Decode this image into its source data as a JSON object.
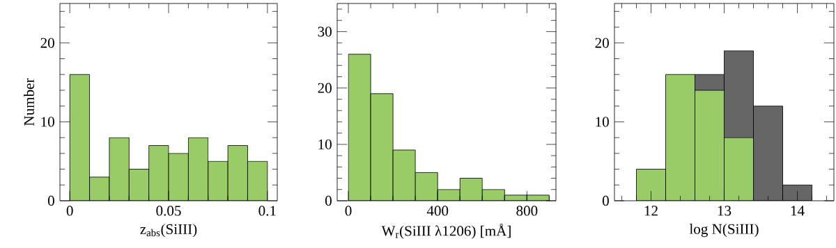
{
  "chart_data": [
    {
      "type": "histogram",
      "xlabel": "z$_{abs}$(SiIII)",
      "ylabel": "Number",
      "bins": [
        0,
        0.01,
        0.02,
        0.03,
        0.04,
        0.05,
        0.06,
        0.07,
        0.08,
        0.09,
        0.1
      ],
      "values": [
        16,
        3,
        8,
        4,
        7,
        6,
        8,
        5,
        7,
        5
      ],
      "color": "#99cc66",
      "xlim": [
        -0.005,
        0.105
      ],
      "ylim": [
        0,
        25
      ],
      "xticks": [
        0,
        {
          "value": 0.01,
          "label": null
        },
        {
          "value": 0.02,
          "label": null
        },
        {
          "value": 0.03,
          "label": null
        },
        {
          "value": 0.04,
          "label": null
        },
        0.05,
        {
          "value": 0.06,
          "label": null
        },
        {
          "value": 0.07,
          "label": null
        },
        {
          "value": 0.08,
          "label": null
        },
        {
          "value": 0.09,
          "label": null
        },
        0.1
      ],
      "yticks": [
        0,
        {
          "value": 2,
          "label": null
        },
        {
          "value": 4,
          "label": null
        },
        {
          "value": 6,
          "label": null
        },
        {
          "value": 8,
          "label": null
        },
        10,
        {
          "value": 12,
          "label": null
        },
        {
          "value": 14,
          "label": null
        },
        {
          "value": 16,
          "label": null
        },
        {
          "value": 18,
          "label": null
        },
        20,
        {
          "value": 22,
          "label": null
        },
        {
          "value": 24,
          "label": null
        }
      ]
    },
    {
      "type": "histogram",
      "xlabel": "W$_{r}$(SiIII λ1206)  [mÅ]",
      "bins": [
        0,
        100,
        200,
        300,
        400,
        500,
        600,
        700,
        800,
        900
      ],
      "values": [
        26,
        19,
        9,
        5,
        2,
        4,
        2,
        1,
        1
      ],
      "color": "#99cc66",
      "xlim": [
        -50,
        930
      ],
      "ylim": [
        0,
        35
      ],
      "xticks": [
        0,
        {
          "value": 100,
          "label": null
        },
        {
          "value": 200,
          "label": null
        },
        {
          "value": 300,
          "label": null
        },
        400,
        {
          "value": 500,
          "label": null
        },
        {
          "value": 600,
          "label": null
        },
        {
          "value": 700,
          "label": null
        },
        800,
        {
          "value": 900,
          "label": null
        }
      ],
      "yticks": [
        0,
        {
          "value": 2,
          "label": null
        },
        {
          "value": 4,
          "label": null
        },
        {
          "value": 6,
          "label": null
        },
        {
          "value": 8,
          "label": null
        },
        10,
        {
          "value": 12,
          "label": null
        },
        {
          "value": 14,
          "label": null
        },
        {
          "value": 16,
          "label": null
        },
        {
          "value": 18,
          "label": null
        },
        20,
        {
          "value": 22,
          "label": null
        },
        {
          "value": 24,
          "label": null
        },
        {
          "value": 26,
          "label": null
        },
        {
          "value": 28,
          "label": null
        },
        30,
        {
          "value": 32,
          "label": null
        },
        {
          "value": 34,
          "label": null
        }
      ]
    },
    {
      "type": "histogram",
      "xlabel": "log  N(SiIII)",
      "bins": [
        11.8,
        12.2,
        12.6,
        13.0,
        13.4,
        13.8,
        14.2
      ],
      "xlim": [
        11.5,
        14.5
      ],
      "ylim": [
        0,
        25
      ],
      "series": [
        {
          "color": "#666666",
          "values": [
            null,
            null,
            16,
            19,
            12,
            2
          ]
        },
        {
          "color": "#99cc66",
          "values": [
            4,
            16,
            14,
            8,
            null,
            null
          ]
        }
      ],
      "xticks": [
        {
          "value": 11.6,
          "label": null
        },
        {
          "value": 11.8,
          "label": null
        },
        12,
        {
          "value": 12.2,
          "label": null
        },
        {
          "value": 12.4,
          "label": null
        },
        {
          "value": 12.6,
          "label": null
        },
        {
          "value": 12.8,
          "label": null
        },
        13,
        {
          "value": 13.2,
          "label": null
        },
        {
          "value": 13.4,
          "label": null
        },
        {
          "value": 13.6,
          "label": null
        },
        {
          "value": 13.8,
          "label": null
        },
        14,
        {
          "value": 14.2,
          "label": null
        },
        {
          "value": 14.4,
          "label": null
        }
      ],
      "yticks": [
        0,
        {
          "value": 2,
          "label": null
        },
        {
          "value": 4,
          "label": null
        },
        {
          "value": 6,
          "label": null
        },
        {
          "value": 8,
          "label": null
        },
        10,
        {
          "value": 12,
          "label": null
        },
        {
          "value": 14,
          "label": null
        },
        {
          "value": 16,
          "label": null
        },
        {
          "value": 18,
          "label": null
        },
        20,
        {
          "value": 22,
          "label": null
        },
        {
          "value": 24,
          "label": null
        }
      ]
    }
  ]
}
